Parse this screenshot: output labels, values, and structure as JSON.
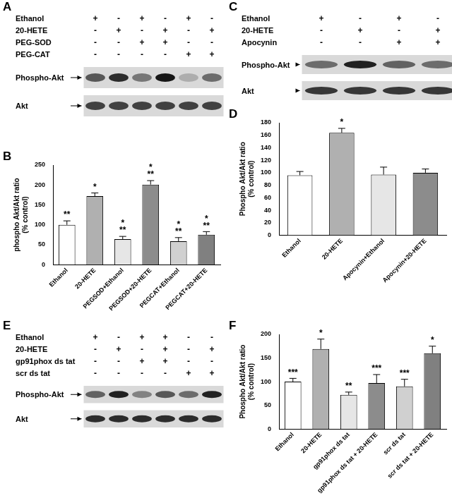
{
  "chart_data": [
    {
      "panel": "B",
      "type": "bar",
      "y_label": [
        "phospho Akt/Akt ratio",
        "(% control)"
      ],
      "categories": [
        "Ethanol",
        "20-HETE",
        "PEGSOD+Ethanol",
        "PEGSOD+20-HETE",
        "PEGCAT+Ethanol",
        "PEGCAT+20-HETE"
      ],
      "values": [
        100,
        172,
        64,
        201,
        59,
        75
      ],
      "errors": [
        10,
        8,
        7,
        10,
        9,
        8
      ],
      "annotations": [
        [
          "**"
        ],
        [
          "*"
        ],
        [
          "*",
          "**"
        ],
        [
          "*",
          "**"
        ],
        [
          "*",
          "**"
        ],
        [
          "*",
          "**"
        ]
      ],
      "colors": [
        "#ffffff",
        "#b0b0b0",
        "#e6e6e6",
        "#8c8c8c",
        "#d0d0d0",
        "#808080"
      ],
      "ylim": [
        0,
        250
      ],
      "yticks": [
        0,
        50,
        100,
        150,
        200,
        250
      ],
      "grid": false
    },
    {
      "panel": "D",
      "type": "bar",
      "y_label": [
        "Phospho Akt/Akt ratio",
        "(% control)"
      ],
      "categories": [
        "Ethanol",
        "20-HETE",
        "Apocynin+Ethanol",
        "Apocynin+20-HETE"
      ],
      "values": [
        96,
        164,
        97,
        100
      ],
      "errors": [
        6,
        7,
        12,
        6
      ],
      "annotations": [
        [],
        [
          "*"
        ],
        [],
        []
      ],
      "colors": [
        "#ffffff",
        "#b0b0b0",
        "#e6e6e6",
        "#8c8c8c"
      ],
      "ylim": [
        0,
        180
      ],
      "yticks": [
        0,
        20,
        40,
        60,
        80,
        100,
        120,
        140,
        160,
        180
      ],
      "grid": false
    },
    {
      "panel": "F",
      "type": "bar",
      "y_label": [
        "Phospho Akt/Akt ratio",
        "(% control)"
      ],
      "categories": [
        "Ethanol",
        "20-HETE",
        "gp91phox ds tat",
        "gp91phox ds tat + 20-HETE",
        "scr ds tat",
        "scr ds tat + 20-HETE"
      ],
      "values": [
        100,
        169,
        72,
        97,
        90,
        160
      ],
      "errors": [
        7,
        21,
        6,
        18,
        15,
        15
      ],
      "annotations": [
        [
          "***"
        ],
        [
          "*"
        ],
        [
          "**"
        ],
        [
          "***"
        ],
        [
          "***"
        ],
        [
          "*"
        ]
      ],
      "colors": [
        "#ffffff",
        "#b0b0b0",
        "#e6e6e6",
        "#8c8c8c",
        "#d0d0d0",
        "#808080"
      ],
      "ylim": [
        0,
        200
      ],
      "yticks": [
        0,
        50,
        100,
        150,
        200
      ],
      "grid": false
    }
  ],
  "blots": [
    {
      "panel": "A",
      "rows": [
        {
          "label": "Ethanol",
          "marks": [
            "+",
            "-",
            "+",
            "-",
            "+",
            "-"
          ]
        },
        {
          "label": "20-HETE",
          "marks": [
            "-",
            "+",
            "-",
            "+",
            "-",
            "+"
          ]
        },
        {
          "label": "PEG-SOD",
          "marks": [
            "-",
            "-",
            "+",
            "+",
            "-",
            "-"
          ]
        },
        {
          "label": "PEG-CAT",
          "marks": [
            "-",
            "-",
            "-",
            "-",
            "+",
            "+"
          ]
        }
      ],
      "bands": [
        {
          "label": "Phospho-Akt",
          "intensities": [
            0.6,
            0.8,
            0.45,
            0.9,
            0.2,
            0.5
          ]
        },
        {
          "label": "Akt",
          "intensities": [
            0.7,
            0.7,
            0.7,
            0.7,
            0.7,
            0.7
          ]
        }
      ]
    },
    {
      "panel": "C",
      "rows": [
        {
          "label": "Ethanol",
          "marks": [
            "+",
            "-",
            "+",
            "-"
          ]
        },
        {
          "label": "20-HETE",
          "marks": [
            "-",
            "+",
            "-",
            "+"
          ]
        },
        {
          "label": "Apocynin",
          "marks": [
            "-",
            "-",
            "+",
            "+"
          ]
        }
      ],
      "bands": [
        {
          "label": "Phospho-Akt",
          "intensities": [
            0.5,
            0.85,
            0.55,
            0.5
          ]
        },
        {
          "label": "Akt",
          "intensities": [
            0.75,
            0.75,
            0.75,
            0.75
          ]
        }
      ]
    },
    {
      "panel": "E",
      "rows": [
        {
          "label": "Ethanol",
          "marks": [
            "+",
            "-",
            "+",
            "+",
            "-",
            "-"
          ]
        },
        {
          "label": "20-HETE",
          "marks": [
            "-",
            "+",
            "-",
            "+",
            "-",
            "+"
          ]
        },
        {
          "label": "gp91phox ds tat",
          "marks": [
            "-",
            "-",
            "+",
            "+",
            "-",
            "-"
          ]
        },
        {
          "label": "scr ds tat",
          "marks": [
            "-",
            "-",
            "-",
            "-",
            "+",
            "+"
          ]
        }
      ],
      "bands": [
        {
          "label": "Phospho-Akt",
          "intensities": [
            0.55,
            0.85,
            0.4,
            0.6,
            0.5,
            0.85
          ]
        },
        {
          "label": "Akt",
          "intensities": [
            0.8,
            0.8,
            0.8,
            0.8,
            0.8,
            0.8
          ]
        }
      ]
    }
  ]
}
